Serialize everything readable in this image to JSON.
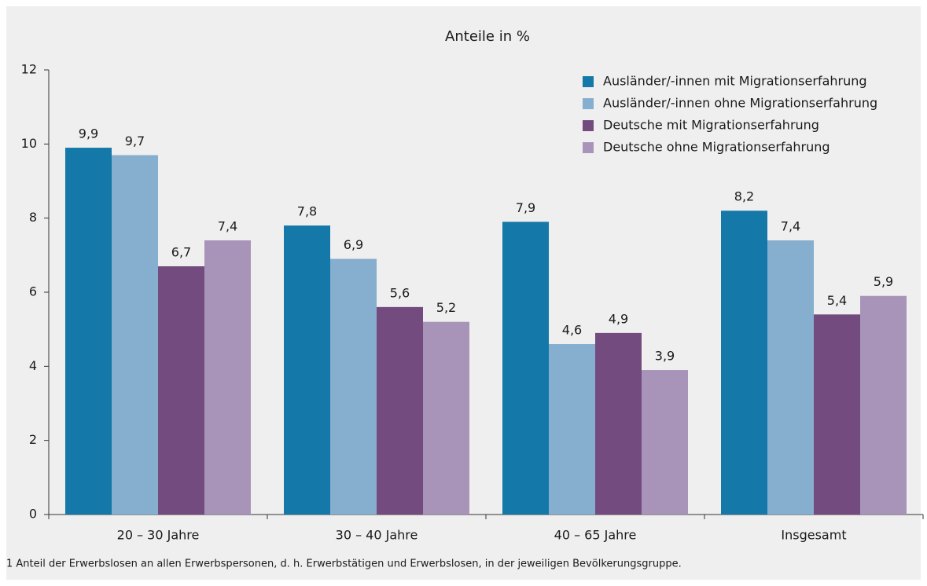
{
  "chart_data": {
    "type": "bar",
    "title": "Anteile in %",
    "categories": [
      "20 – 30 Jahre",
      "30 – 40 Jahre",
      "40 – 65 Jahre",
      "Insgesamt"
    ],
    "series": [
      {
        "name": "Ausländer/-innen mit Migrationserfahrung",
        "color": "#1478a8",
        "values": [
          9.9,
          7.8,
          7.9,
          8.2
        ],
        "value_labels": [
          "9,9",
          "7,8",
          "7,9",
          "8,2"
        ]
      },
      {
        "name": "Ausländer/-innen ohne Migrationserfahrung",
        "color": "#85aecf",
        "values": [
          9.7,
          6.9,
          4.6,
          7.4
        ],
        "value_labels": [
          "9,7",
          "6,9",
          "4,6",
          "7,4"
        ]
      },
      {
        "name": "Deutsche mit Migrationserfahrung",
        "color": "#744b7e",
        "values": [
          6.7,
          5.6,
          4.9,
          5.4
        ],
        "value_labels": [
          "6,7",
          "5,6",
          "4,9",
          "5,4"
        ]
      },
      {
        "name": "Deutsche ohne Migrationserfahrung",
        "color": "#a994b9",
        "values": [
          7.4,
          5.2,
          3.9,
          5.9
        ],
        "value_labels": [
          "7,4",
          "5,2",
          "3,9",
          "5,9"
        ]
      }
    ],
    "ylim": [
      0,
      12
    ],
    "yticks": [
      0,
      2,
      4,
      6,
      8,
      10,
      12
    ],
    "legend": "top-right",
    "footnote": "1 Anteil der Erwerbslosen an allen Erwerbspersonen, d. h. Erwerbstätigen und Erwerbslosen, in der jeweiligen Bevölkerungsgruppe."
  }
}
